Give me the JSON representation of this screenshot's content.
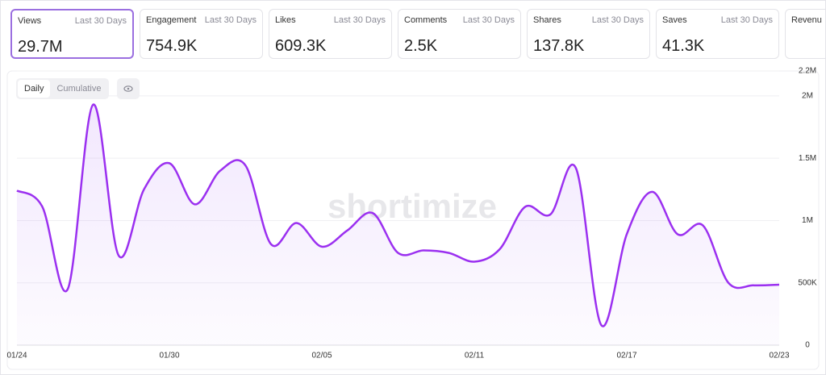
{
  "cards": [
    {
      "label": "Views",
      "period": "Last 30 Days",
      "value": "29.7M"
    },
    {
      "label": "Engagement",
      "period": "Last 30 Days",
      "value": "754.9K"
    },
    {
      "label": "Likes",
      "period": "Last 30 Days",
      "value": "609.3K"
    },
    {
      "label": "Comments",
      "period": "Last 30 Days",
      "value": "2.5K"
    },
    {
      "label": "Shares",
      "period": "Last 30 Days",
      "value": "137.8K"
    },
    {
      "label": "Saves",
      "period": "Last 30 Days",
      "value": "41.3K"
    },
    {
      "label": "Revenu"
    }
  ],
  "toggle": [
    "Daily",
    "Cumulative"
  ],
  "watermark": "shortimize",
  "chart_data": {
    "type": "line",
    "categories": [
      "01/24",
      null,
      null,
      null,
      null,
      null,
      "01/30",
      null,
      null,
      null,
      null,
      null,
      "02/05",
      null,
      null,
      null,
      null,
      null,
      "02/11",
      null,
      null,
      null,
      null,
      null,
      "02/17",
      null,
      null,
      null,
      null,
      null,
      "02/23"
    ],
    "series": [
      {
        "name": "Views",
        "color": "#9b30f0",
        "values": [
          1240000,
          1110000,
          450000,
          1930000,
          720000,
          1250000,
          1460000,
          1130000,
          1400000,
          1440000,
          810000,
          980000,
          790000,
          920000,
          1060000,
          740000,
          760000,
          740000,
          670000,
          770000,
          1110000,
          1050000,
          1420000,
          160000,
          890000,
          1230000,
          890000,
          960000,
          500000,
          480000,
          485000
        ]
      }
    ],
    "ylim": [
      0,
      2200000
    ],
    "yticks": [
      0,
      {
        "value": 500000,
        "label": "500K"
      },
      {
        "value": 1000000,
        "label": "1M"
      },
      {
        "value": 1500000,
        "label": "1.5M"
      },
      {
        "value": 2000000,
        "label": "2M"
      },
      {
        "value": 2200000,
        "label": "2.2M"
      }
    ],
    "grid": true
  }
}
